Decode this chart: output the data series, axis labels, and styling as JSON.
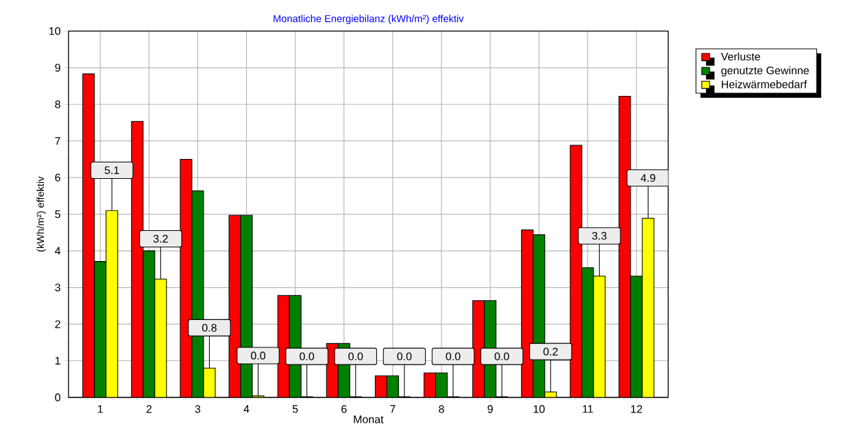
{
  "chart_data": {
    "type": "bar",
    "title": "Monatliche Energiebilanz (kWh/m²) effektiv",
    "xlabel": "Monat",
    "ylabel": "(kWh/m²) effektiv",
    "categories": [
      "1",
      "2",
      "3",
      "4",
      "5",
      "6",
      "7",
      "8",
      "9",
      "10",
      "11",
      "12"
    ],
    "series": [
      {
        "name": "Verluste",
        "color": "#ff0000",
        "values": [
          8.83,
          7.53,
          6.5,
          4.97,
          2.78,
          1.47,
          0.59,
          0.67,
          2.64,
          4.57,
          6.88,
          8.22
        ]
      },
      {
        "name": "genutzte Gewinne",
        "color": "#008000",
        "values": [
          3.71,
          4.0,
          5.64,
          4.97,
          2.78,
          1.47,
          0.59,
          0.67,
          2.64,
          4.44,
          3.54,
          3.31
        ]
      },
      {
        "name": "Heizwärmebedarf",
        "color": "#ffff00",
        "values": [
          5.1,
          3.23,
          0.8,
          0.04,
          0.02,
          0.02,
          0.02,
          0.02,
          0.02,
          0.15,
          3.31,
          4.89
        ],
        "value_labels": [
          "5.1",
          "3.2",
          "0.8",
          "0.0",
          "0.0",
          "0.0",
          "0.0",
          "0.0",
          "0.0",
          "0.2",
          "3.3",
          "4.9"
        ]
      }
    ],
    "ylim": [
      0,
      10
    ],
    "yticks": [
      0,
      1,
      2,
      3,
      4,
      5,
      6,
      7,
      8,
      9,
      10
    ],
    "grid": true,
    "legend": "top right"
  }
}
